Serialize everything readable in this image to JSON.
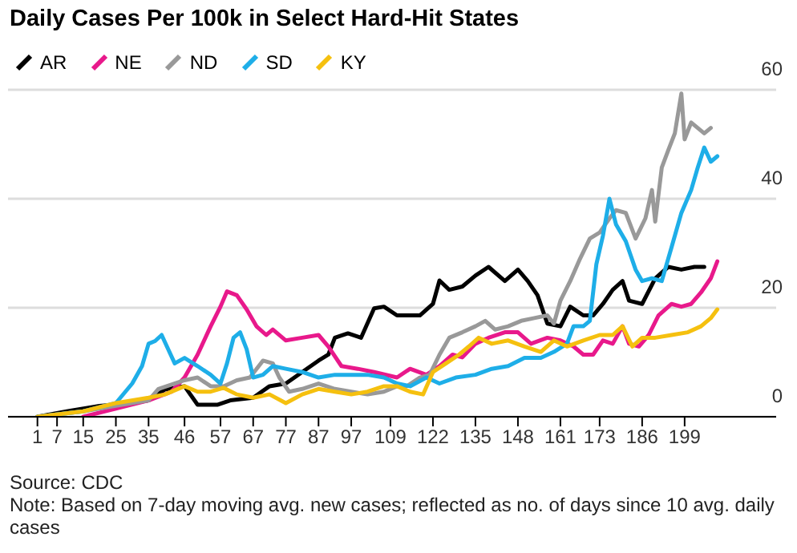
{
  "chart_data": {
    "type": "line",
    "title": "Daily Cases Per 100k in Select Hard-Hit States",
    "annotations": [
      "Source: CDC",
      "Note: Based on 7-day moving avg. new cases; reflected as no. of days since 10 avg. daily cases"
    ],
    "xlim": [
      -8,
      227
    ],
    "xticks": [
      1,
      7,
      15,
      25,
      35,
      46,
      57,
      67,
      77,
      87,
      97,
      109,
      122,
      135,
      148,
      161,
      173,
      186,
      199
    ],
    "ylim": [
      0,
      60
    ],
    "yticks": [
      0,
      20,
      40,
      60
    ],
    "grid": "y",
    "legend": "top left",
    "series": [
      {
        "name": "AR",
        "color": "#000000",
        "x": [
          1,
          10,
          20,
          30,
          35,
          40,
          46,
          50,
          56,
          60,
          67,
          72,
          77,
          82,
          87,
          90,
          92,
          96,
          100,
          104,
          107,
          111,
          115,
          118,
          122,
          124,
          127,
          131,
          135,
          139,
          144,
          148,
          151,
          154,
          157,
          161,
          164,
          168,
          171,
          174,
          177,
          180,
          182,
          186,
          190,
          194,
          198,
          202,
          205
        ],
        "values": [
          0,
          1,
          2,
          2.5,
          3,
          5,
          5.6,
          2.2,
          2.2,
          3,
          3.5,
          5.6,
          6.1,
          8.2,
          10.3,
          11.4,
          14.5,
          15.3,
          14.5,
          19.9,
          20.2,
          18.6,
          18.6,
          18.6,
          20.7,
          25,
          23.3,
          23.9,
          25.9,
          27.5,
          24.9,
          27,
          24.9,
          22.3,
          17.1,
          16.6,
          20.2,
          18.6,
          18.6,
          20.7,
          23.3,
          24.9,
          21.3,
          20.7,
          25.4,
          27.5,
          27,
          27.5,
          27.5
        ]
      },
      {
        "name": "NE",
        "color": "#e8198b",
        "x": [
          15,
          25,
          35,
          42,
          46,
          50,
          54,
          57,
          59,
          62,
          65,
          68,
          71,
          73,
          77,
          82,
          87,
          90,
          94,
          99,
          104,
          111,
          115,
          120,
          124,
          128,
          131,
          135,
          139,
          144,
          148,
          152,
          157,
          161,
          165,
          168,
          171,
          174,
          177,
          180,
          182,
          185,
          188,
          191,
          195,
          198,
          201,
          204,
          207,
          209
        ],
        "values": [
          0,
          1.5,
          3,
          4.6,
          7.2,
          11.4,
          16.6,
          20.2,
          23,
          22.3,
          19.7,
          16.6,
          15,
          16,
          14,
          14.5,
          15,
          12.9,
          9.3,
          8.8,
          8.2,
          7.2,
          8.8,
          7.7,
          9.3,
          11.4,
          10.9,
          13.4,
          14.5,
          15.5,
          15.5,
          13.4,
          14.5,
          14,
          12.9,
          11.4,
          11.4,
          14,
          13.4,
          16.6,
          13.4,
          12.9,
          15,
          18.6,
          20.7,
          20.2,
          20.7,
          22.8,
          25.4,
          28.5
        ]
      },
      {
        "name": "ND",
        "color": "#999999",
        "x": [
          1,
          15,
          25,
          35,
          38,
          42,
          46,
          50,
          54,
          58,
          62,
          66,
          70,
          73,
          75,
          78,
          82,
          87,
          92,
          97,
          102,
          107,
          111,
          114,
          118,
          121,
          124,
          127,
          131,
          135,
          138,
          141,
          145,
          149,
          153,
          157,
          159,
          161,
          164,
          167,
          170,
          173,
          176,
          178,
          181,
          184,
          187,
          189,
          190,
          192,
          194,
          196,
          198,
          199,
          201,
          203,
          205,
          207
        ],
        "values": [
          0,
          1,
          2,
          3,
          5.1,
          5.9,
          6.7,
          7.2,
          5.6,
          5.6,
          6.7,
          7.2,
          10.3,
          9.8,
          7.2,
          4.6,
          5.1,
          6.1,
          5.1,
          4.6,
          4.1,
          4.6,
          5.6,
          5.6,
          7.2,
          7.7,
          11.4,
          14.5,
          15.5,
          16.6,
          17.6,
          16,
          16.6,
          17.6,
          18.1,
          18.6,
          17.1,
          21.3,
          24.9,
          29,
          32.7,
          33.8,
          36.4,
          37.9,
          37.4,
          32.7,
          36.4,
          41.6,
          35.8,
          45.7,
          48.9,
          52,
          59.3,
          50.9,
          54,
          53,
          52,
          53
        ]
      },
      {
        "name": "SD",
        "color": "#1eaee8",
        "x": [
          1,
          15,
          25,
          30,
          33,
          35,
          37,
          39,
          41,
          43,
          46,
          50,
          54,
          57,
          59,
          61,
          63,
          65,
          67,
          70,
          73,
          77,
          82,
          87,
          92,
          97,
          102,
          107,
          111,
          115,
          120,
          124,
          129,
          135,
          140,
          145,
          150,
          155,
          159,
          163,
          165,
          168,
          170,
          172,
          174,
          176,
          178,
          181,
          184,
          186,
          189,
          192,
          195,
          198,
          201,
          203,
          205,
          207,
          209
        ],
        "values": [
          0,
          1,
          2.5,
          6.1,
          9.3,
          13.4,
          13.9,
          15,
          12.4,
          9.8,
          10.8,
          9.3,
          7.7,
          6.1,
          9.8,
          14.5,
          15.5,
          12.4,
          7.2,
          7.7,
          9.3,
          8.8,
          8.2,
          7.2,
          7.7,
          7.7,
          7.7,
          7.2,
          6.1,
          5.6,
          7.2,
          6.1,
          7.2,
          7.7,
          8.8,
          9.3,
          10.8,
          10.8,
          11.9,
          13.4,
          16.6,
          16.6,
          17.6,
          28,
          33.2,
          40,
          35.3,
          32.2,
          27,
          24.9,
          25.4,
          24.9,
          31.1,
          37.4,
          41.6,
          45.7,
          49.4,
          46.8,
          47.8
        ]
      },
      {
        "name": "KY",
        "color": "#f5c00f",
        "x": [
          1,
          15,
          25,
          35,
          40,
          46,
          50,
          54,
          58,
          62,
          67,
          72,
          77,
          82,
          87,
          92,
          97,
          102,
          107,
          111,
          115,
          119,
          122,
          126,
          130,
          133,
          136,
          140,
          145,
          150,
          155,
          159,
          163,
          168,
          173,
          177,
          180,
          183,
          186,
          190,
          195,
          200,
          204,
          207,
          209
        ],
        "values": [
          0,
          1,
          2.5,
          3.5,
          4.1,
          5.6,
          4.6,
          4.6,
          5.3,
          4.1,
          3.5,
          4.1,
          2.5,
          4.1,
          5.1,
          4.6,
          4.1,
          4.6,
          5.6,
          5.6,
          4.6,
          4.1,
          8.2,
          9.8,
          11.4,
          12.9,
          14.5,
          13.4,
          14,
          12.9,
          11.9,
          14,
          12.9,
          14,
          15,
          15,
          16.6,
          12.9,
          14.5,
          14.5,
          15,
          15.5,
          16.6,
          18.1,
          19.7
        ]
      }
    ]
  }
}
